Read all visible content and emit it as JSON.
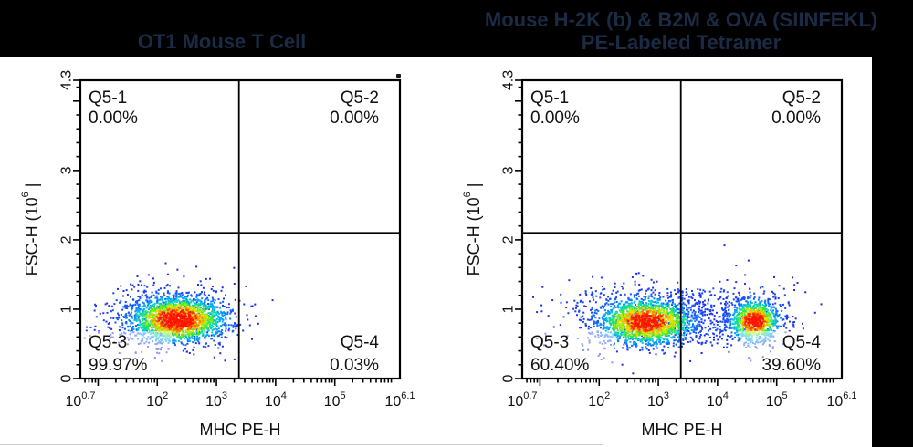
{
  "page": {
    "background_color": "#000000",
    "figure_background_color": "#ffffff",
    "title_color": "#1c2b45",
    "axis_color": "#000000",
    "text_color": "#111111"
  },
  "chart_data": [
    {
      "type": "scatter",
      "subtype": "flow-cytometry-density-plot",
      "title": "OT1 Mouse T Cell",
      "title_lines": [
        "OT1 Mouse T Cell"
      ],
      "xlabel": "MHC PE-H",
      "ylabel_parts": {
        "prefix": "FSC-H (10",
        "exponent": "6",
        "suffix": " |"
      },
      "x_scale": "log10",
      "xlim_log10": [
        0.7,
        6.1
      ],
      "ylim_millions": [
        0,
        4.3
      ],
      "x_tick_labels": [
        {
          "log": 0.7,
          "base": "10",
          "exp": "0.7"
        },
        {
          "log": 2,
          "base": "10",
          "exp": "2"
        },
        {
          "log": 3,
          "base": "10",
          "exp": "3"
        },
        {
          "log": 4,
          "base": "10",
          "exp": "4"
        },
        {
          "log": 5,
          "base": "10",
          "exp": "5"
        },
        {
          "log": 6.1,
          "base": "10",
          "exp": "6.1"
        }
      ],
      "x_major_ticks_log": [
        1,
        2,
        3,
        4,
        5
      ],
      "y_tick_labels": [
        {
          "val": 0,
          "label": "0"
        },
        {
          "val": 1,
          "label": "1"
        },
        {
          "val": 2,
          "label": "2"
        },
        {
          "val": 3,
          "label": "3"
        },
        {
          "val": 4.3,
          "label": "4.3"
        }
      ],
      "y_major_ticks": [
        0,
        1,
        2,
        3,
        4
      ],
      "gates": {
        "x_divider_log10": 3.38,
        "y_divider_millions": 2.1
      },
      "quadrants": [
        {
          "name": "Q5-1",
          "percent_label": "0.00%",
          "percent": 0.0,
          "corner": "top-left"
        },
        {
          "name": "Q5-2",
          "percent_label": "0.00%",
          "percent": 0.0,
          "corner": "top-right"
        },
        {
          "name": "Q5-3",
          "percent_label": "99.97%",
          "percent": 99.97,
          "corner": "bottom-left"
        },
        {
          "name": "Q5-4",
          "percent_label": "0.03%",
          "percent": 0.03,
          "corner": "bottom-right"
        }
      ],
      "clusters": [
        {
          "kind": "gauss",
          "n": 2000,
          "cx": 2.35,
          "cy": 0.85,
          "sx": 0.4,
          "sy": 0.165,
          "peak": 1.0,
          "seed": 7
        },
        {
          "kind": "gauss",
          "n": 420,
          "cx": 2.05,
          "cy": 0.92,
          "sx": 0.62,
          "sy": 0.25,
          "peak": 0.2,
          "seed": 11
        }
      ],
      "stray_points": [
        [
          3.5,
          1.33
        ],
        [
          3.95,
          1.13
        ],
        [
          3.45,
          0.69
        ],
        [
          3.6,
          0.57
        ]
      ]
    },
    {
      "type": "scatter",
      "subtype": "flow-cytometry-density-plot",
      "title": "Mouse H-2K (b) & B2M & OVA (SIINFEKL) PE-Labeled Tetramer",
      "title_lines": [
        "Mouse H-2K (b) & B2M & OVA (SIINFEKL)",
        "PE-Labeled Tetramer"
      ],
      "xlabel": "MHC PE-H",
      "ylabel_parts": {
        "prefix": "FSC-H (10",
        "exponent": "6",
        "suffix": " |"
      },
      "x_scale": "log10",
      "xlim_log10": [
        0.7,
        6.1
      ],
      "ylim_millions": [
        0,
        4.3
      ],
      "x_tick_labels": [
        {
          "log": 0.7,
          "base": "10",
          "exp": "0.7"
        },
        {
          "log": 2,
          "base": "10",
          "exp": "2"
        },
        {
          "log": 3,
          "base": "10",
          "exp": "3"
        },
        {
          "log": 4,
          "base": "10",
          "exp": "4"
        },
        {
          "log": 5,
          "base": "10",
          "exp": "5"
        },
        {
          "log": 6.1,
          "base": "10",
          "exp": "6.1"
        }
      ],
      "x_major_ticks_log": [
        1,
        2,
        3,
        4,
        5
      ],
      "y_tick_labels": [
        {
          "val": 0,
          "label": "0"
        },
        {
          "val": 1,
          "label": "1"
        },
        {
          "val": 2,
          "label": "2"
        },
        {
          "val": 3,
          "label": "3"
        },
        {
          "val": 4.3,
          "label": "4.3"
        }
      ],
      "y_major_ticks": [
        0,
        1,
        2,
        3,
        4
      ],
      "gates": {
        "x_divider_log10": 3.38,
        "y_divider_millions": 2.1
      },
      "quadrants": [
        {
          "name": "Q5-1",
          "percent_label": "0.00%",
          "percent": 0.0,
          "corner": "top-left"
        },
        {
          "name": "Q5-2",
          "percent_label": "0.00%",
          "percent": 0.0,
          "corner": "top-right"
        },
        {
          "name": "Q5-3",
          "percent_label": "60.40%",
          "percent": 60.4,
          "corner": "bottom-left"
        },
        {
          "name": "Q5-4",
          "percent_label": "39.60%",
          "percent": 39.6,
          "corner": "bottom-right"
        }
      ],
      "clusters": [
        {
          "kind": "gauss",
          "n": 1800,
          "cx": 2.8,
          "cy": 0.82,
          "sx": 0.4,
          "sy": 0.165,
          "peak": 0.97,
          "seed": 21
        },
        {
          "kind": "gauss",
          "n": 380,
          "cx": 2.55,
          "cy": 0.9,
          "sx": 0.68,
          "sy": 0.26,
          "peak": 0.2,
          "seed": 22
        },
        {
          "kind": "uniform",
          "n": 240,
          "x0": 3.1,
          "x1": 4.2,
          "y0": 0.5,
          "y1": 1.3,
          "peak": 0.3,
          "seed": 23
        },
        {
          "kind": "gauss",
          "n": 950,
          "cx": 4.62,
          "cy": 0.83,
          "sx": 0.2,
          "sy": 0.145,
          "peak": 1.0,
          "seed": 24
        },
        {
          "kind": "gauss",
          "n": 160,
          "cx": 4.6,
          "cy": 0.9,
          "sx": 0.42,
          "sy": 0.27,
          "peak": 0.18,
          "seed": 25
        }
      ],
      "stray_points": [
        [
          5.2,
          1.1
        ],
        [
          5.45,
          0.72
        ],
        [
          5.1,
          0.5
        ],
        [
          5.65,
          0.95
        ],
        [
          5.3,
          1.35
        ]
      ]
    }
  ],
  "density_colormap": [
    {
      "t": 0.0,
      "c": "#2020e8"
    },
    {
      "t": 0.18,
      "c": "#1560ff"
    },
    {
      "t": 0.33,
      "c": "#00aaff"
    },
    {
      "t": 0.45,
      "c": "#00ddc0"
    },
    {
      "t": 0.58,
      "c": "#3ae830"
    },
    {
      "t": 0.7,
      "c": "#b8f000"
    },
    {
      "t": 0.8,
      "c": "#ffd800"
    },
    {
      "t": 0.9,
      "c": "#ff7800"
    },
    {
      "t": 1.0,
      "c": "#ff1400"
    }
  ]
}
